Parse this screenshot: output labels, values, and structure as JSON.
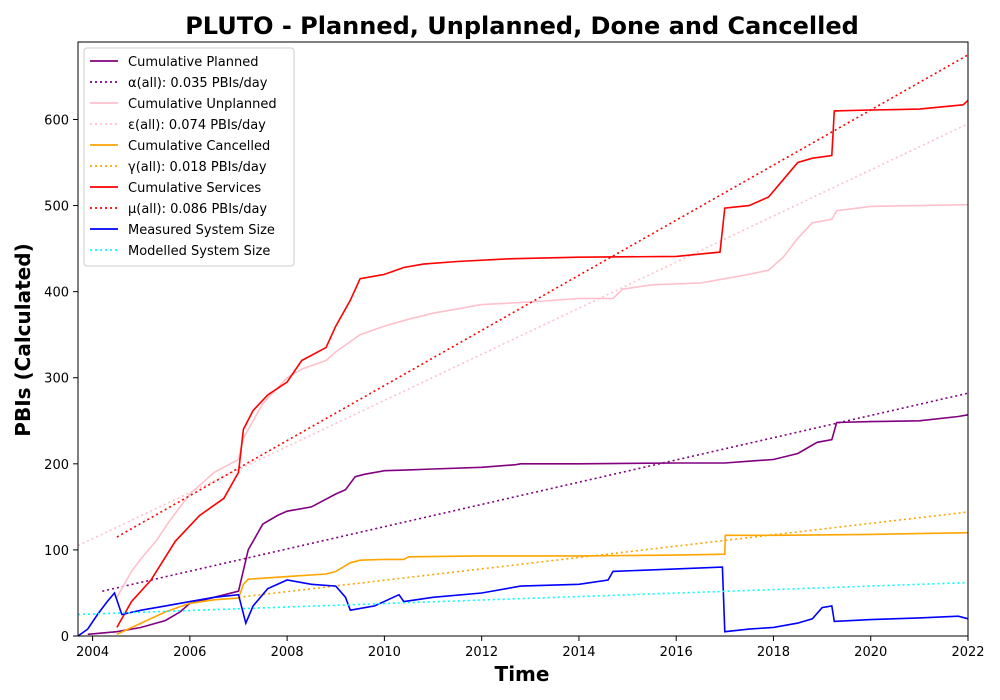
{
  "chart_data": {
    "type": "line",
    "title": "PLUTO - Planned, Unplanned, Done  and Cancelled",
    "xlabel": "Time",
    "ylabel": "PBIs (Calculated)",
    "xlim": [
      2003.7,
      2022.0
    ],
    "ylim": [
      0,
      690
    ],
    "xticks": [
      2004,
      2006,
      2008,
      2010,
      2012,
      2014,
      2016,
      2018,
      2020,
      2022
    ],
    "yticks": [
      0,
      100,
      200,
      300,
      400,
      500,
      600
    ],
    "grid": false,
    "legend_position": "top-left",
    "series": [
      {
        "name": "Cumulative Planned",
        "style": "solid",
        "color": "#800080",
        "x": [
          2003.9,
          2004.5,
          2005.0,
          2005.5,
          2005.8,
          2006.0,
          2006.5,
          2007.0,
          2007.2,
          2007.5,
          2007.8,
          2008.0,
          2008.5,
          2009.0,
          2009.2,
          2009.4,
          2009.6,
          2010.0,
          2010.5,
          2011.0,
          2012.0,
          2012.7,
          2012.8,
          2014.0,
          2016.0,
          2017.0,
          2017.5,
          2018.0,
          2018.5,
          2018.9,
          2019.2,
          2019.3,
          2020.0,
          2021.0,
          2021.8,
          2022.0
        ],
        "y": [
          2,
          5,
          10,
          18,
          28,
          38,
          45,
          52,
          100,
          130,
          140,
          145,
          150,
          165,
          170,
          185,
          188,
          192,
          193,
          194,
          196,
          199,
          200,
          200,
          201,
          201,
          203,
          205,
          212,
          225,
          228,
          248,
          249,
          250,
          255,
          257
        ]
      },
      {
        "name": "α(all): 0.035 PBIs/day",
        "style": "dotted",
        "color": "#800080",
        "x": [
          2004.2,
          2022.0
        ],
        "y": [
          52,
          282
        ]
      },
      {
        "name": "Cumulative Unplanned",
        "style": "solid",
        "color": "#ffc0cb",
        "x": [
          2004.5,
          2004.8,
          2005.0,
          2005.3,
          2005.6,
          2006.0,
          2006.5,
          2007.0,
          2007.1,
          2007.5,
          2008.0,
          2008.3,
          2008.8,
          2009.0,
          2009.5,
          2010.0,
          2010.5,
          2011.0,
          2011.5,
          2012.0,
          2013.0,
          2014.0,
          2014.7,
          2014.9,
          2015.5,
          2016.5,
          2017.0,
          2017.5,
          2017.9,
          2018.2,
          2018.5,
          2018.8,
          2019.2,
          2019.3,
          2020.0,
          2021.0,
          2022.0
        ],
        "y": [
          45,
          75,
          90,
          110,
          135,
          165,
          190,
          205,
          230,
          270,
          300,
          310,
          320,
          330,
          350,
          360,
          368,
          375,
          380,
          385,
          388,
          392,
          392,
          403,
          408,
          410,
          415,
          420,
          425,
          440,
          462,
          480,
          484,
          494,
          499,
          500,
          501
        ]
      },
      {
        "name": "ε(all): 0.074 PBIs/day",
        "style": "dotted",
        "color": "#ffc0cb",
        "x": [
          2003.7,
          2022.0
        ],
        "y": [
          105,
          595
        ]
      },
      {
        "name": "Cumulative Cancelled",
        "style": "solid",
        "color": "#ffa500",
        "x": [
          2004.5,
          2005.0,
          2005.5,
          2006.0,
          2006.5,
          2007.0,
          2007.1,
          2007.2,
          2008.0,
          2008.8,
          2009.0,
          2009.3,
          2009.5,
          2010.0,
          2010.4,
          2010.5,
          2012.0,
          2014.0,
          2016.0,
          2017.0,
          2017.01,
          2018.0,
          2020.0,
          2022.0
        ],
        "y": [
          2,
          15,
          28,
          38,
          42,
          44,
          60,
          66,
          69,
          72,
          75,
          85,
          88,
          89,
          89,
          92,
          93,
          93,
          94,
          95,
          117,
          117,
          118,
          120
        ]
      },
      {
        "name": "γ(all): 0.018 PBIs/day",
        "style": "dotted",
        "color": "#ffa500",
        "x": [
          2007.0,
          2022.0
        ],
        "y": [
          45,
          144
        ]
      },
      {
        "name": "Cumulative Services",
        "style": "solid",
        "color": "#ff0000",
        "x": [
          2004.5,
          2004.8,
          2005.2,
          2005.7,
          2006.2,
          2006.7,
          2007.0,
          2007.1,
          2007.3,
          2007.6,
          2008.0,
          2008.3,
          2008.8,
          2009.0,
          2009.3,
          2009.5,
          2010.0,
          2010.4,
          2010.8,
          2011.5,
          2012.5,
          2014.0,
          2016.0,
          2016.9,
          2017.0,
          2017.5,
          2017.9,
          2018.2,
          2018.5,
          2018.8,
          2019.2,
          2019.25,
          2020.0,
          2021.0,
          2021.9,
          2022.0
        ],
        "y": [
          10,
          40,
          65,
          110,
          140,
          160,
          190,
          240,
          262,
          280,
          295,
          320,
          335,
          360,
          390,
          415,
          420,
          428,
          432,
          435,
          438,
          440,
          441,
          446,
          497,
          500,
          510,
          530,
          550,
          555,
          558,
          610,
          611,
          612,
          617,
          622
        ]
      },
      {
        "name": "μ(all): 0.086 PBIs/day",
        "style": "dotted",
        "color": "#ff0000",
        "x": [
          2004.5,
          2022.0
        ],
        "y": [
          115,
          675
        ]
      },
      {
        "name": "Measured System Size",
        "style": "solid",
        "color": "#0000ff",
        "x": [
          2003.7,
          2003.9,
          2004.1,
          2004.3,
          2004.45,
          2004.6,
          2005.0,
          2005.5,
          2006.0,
          2006.5,
          2007.0,
          2007.15,
          2007.3,
          2007.6,
          2008.0,
          2008.5,
          2009.0,
          2009.2,
          2009.3,
          2009.8,
          2010.3,
          2010.4,
          2011.0,
          2012.0,
          2012.8,
          2014.0,
          2014.6,
          2014.7,
          2016.0,
          2016.95,
          2017.0,
          2017.5,
          2018.0,
          2018.5,
          2018.8,
          2019.0,
          2019.2,
          2019.25,
          2020.0,
          2021.0,
          2021.8,
          2022.0
        ],
        "y": [
          0,
          8,
          25,
          40,
          50,
          25,
          30,
          35,
          40,
          45,
          48,
          15,
          35,
          55,
          65,
          60,
          58,
          45,
          30,
          35,
          48,
          40,
          45,
          50,
          58,
          60,
          65,
          75,
          78,
          80,
          5,
          8,
          10,
          15,
          20,
          33,
          35,
          17,
          19,
          21,
          23,
          20
        ]
      },
      {
        "name": "Modelled System Size",
        "style": "dotted",
        "color": "#00ffff",
        "x": [
          2003.7,
          2022.0
        ],
        "y": [
          25,
          62
        ]
      }
    ]
  }
}
